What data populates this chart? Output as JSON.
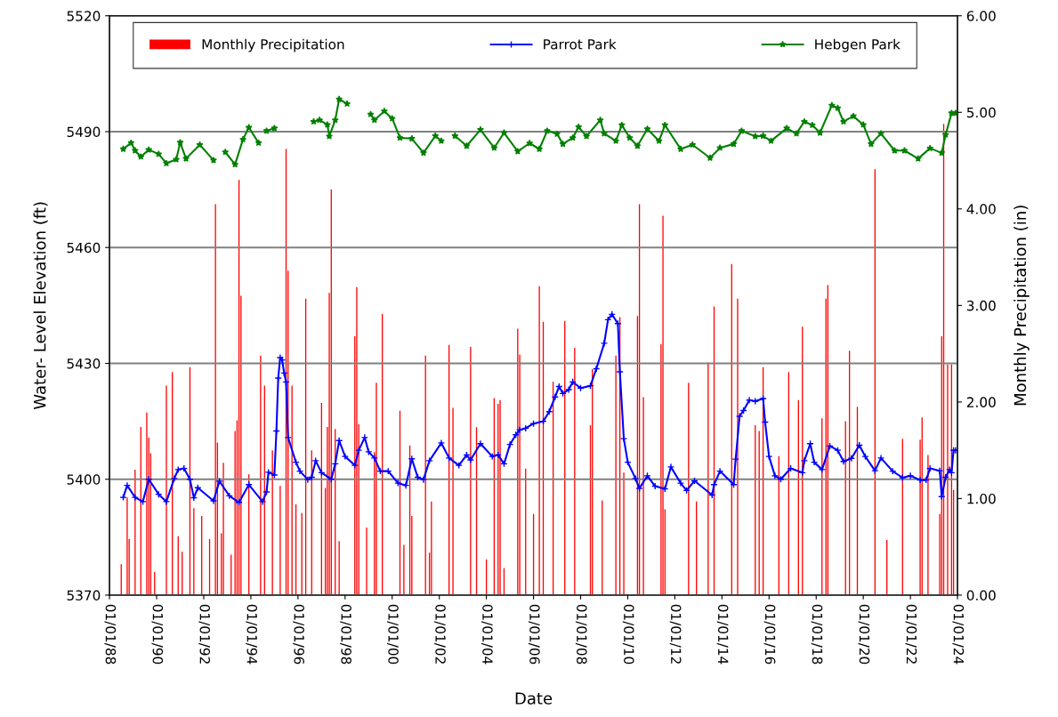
{
  "chart_data": {
    "type": "line",
    "xlabel": "Date",
    "ylabel": "Water- Level Elevation (ft)",
    "y2label": "Monthly Precipitation (in)",
    "xlim": [
      "1988-01-01",
      "2024-01-01"
    ],
    "xticks": [
      {
        "value": "1988-01-01",
        "label": "01/01/88"
      },
      {
        "value": "1990-01-01",
        "label": "01/01/90"
      },
      {
        "value": "1992-01-01",
        "label": "01/01/92"
      },
      {
        "value": "1994-01-01",
        "label": "01/01/94"
      },
      {
        "value": "1996-01-01",
        "label": "01/01/96"
      },
      {
        "value": "1998-01-01",
        "label": "01/01/98"
      },
      {
        "value": "2000-01-01",
        "label": "01/01/00"
      },
      {
        "value": "2002-01-01",
        "label": "01/01/02"
      },
      {
        "value": "2004-01-01",
        "label": "01/01/04"
      },
      {
        "value": "2006-01-01",
        "label": "01/01/06"
      },
      {
        "value": "2008-01-01",
        "label": "01/01/08"
      },
      {
        "value": "2010-01-01",
        "label": "01/01/10"
      },
      {
        "value": "2012-01-01",
        "label": "01/01/12"
      },
      {
        "value": "2014-01-01",
        "label": "01/01/14"
      },
      {
        "value": "2016-01-01",
        "label": "01/01/16"
      },
      {
        "value": "2018-01-01",
        "label": "01/01/18"
      },
      {
        "value": "2020-01-01",
        "label": "01/01/20"
      },
      {
        "value": "2022-01-01",
        "label": "01/01/22"
      },
      {
        "value": "2024-01-01",
        "label": "01/01/24"
      }
    ],
    "ylim": [
      5370,
      5520
    ],
    "yticks": [
      5370,
      5400,
      5430,
      5460,
      5490,
      5520
    ],
    "y2lim": [
      0,
      6
    ],
    "y2ticks": [
      {
        "value": 0,
        "label": "0.00"
      },
      {
        "value": 1,
        "label": "1.00"
      },
      {
        "value": 2,
        "label": "2.00"
      },
      {
        "value": 3,
        "label": "3.00"
      },
      {
        "value": 4,
        "label": "4.00"
      },
      {
        "value": 5,
        "label": "5.00"
      },
      {
        "value": 6,
        "label": "6.00"
      }
    ],
    "grid": "y",
    "legend": "top",
    "series": [
      {
        "name": "Monthly Precipitation",
        "type": "bar",
        "axis": "y2",
        "color": "#ff0000",
        "x": [
          "1988-07",
          "1988-10",
          "1988-11",
          "1989-02",
          "1989-05",
          "1989-08",
          "1989-09",
          "1989-10",
          "1989-12",
          "1990-06",
          "1990-09",
          "1990-12",
          "1991-02",
          "1991-06",
          "1991-08",
          "1991-12",
          "1992-04",
          "1992-07",
          "1992-08",
          "1992-10",
          "1992-11",
          "1993-03",
          "1993-05",
          "1993-06",
          "1993-07",
          "1993-08",
          "1993-12",
          "1994-06",
          "1994-08",
          "1994-12",
          "1995-04",
          "1995-07",
          "1995-08",
          "1995-10",
          "1995-12",
          "1996-03",
          "1996-05",
          "1996-08",
          "1997-01",
          "1997-03",
          "1997-04",
          "1997-05",
          "1997-06",
          "1997-08",
          "1997-10",
          "1998-06",
          "1998-07",
          "1998-08",
          "1998-12",
          "1999-04",
          "1999-05",
          "1999-08",
          "2000-05",
          "2000-07",
          "2000-10",
          "2000-11",
          "2001-06",
          "2001-08",
          "2001-09",
          "2002-06",
          "2002-08",
          "2003-05",
          "2003-08",
          "2004-01",
          "2004-05",
          "2004-07",
          "2004-08",
          "2004-10",
          "2005-05",
          "2005-06",
          "2005-09",
          "2006-01",
          "2006-04",
          "2006-06",
          "2006-11",
          "2007-05",
          "2007-10",
          "2008-06",
          "2008-07",
          "2008-12",
          "2009-07",
          "2009-09",
          "2009-11",
          "2010-06",
          "2010-07",
          "2010-09",
          "2011-06",
          "2011-07",
          "2011-08",
          "2012-08",
          "2012-12",
          "2013-06",
          "2013-09",
          "2014-06",
          "2014-09",
          "2015-06",
          "2015-08",
          "2015-10",
          "2016-06",
          "2016-11",
          "2017-04",
          "2017-06",
          "2018-04",
          "2018-06",
          "2018-07",
          "2019-04",
          "2019-06",
          "2019-10",
          "2020-07",
          "2021-01",
          "2021-09",
          "2022-06",
          "2022-07",
          "2022-10",
          "2023-04",
          "2023-05",
          "2023-06",
          "2023-08",
          "2023-10",
          "2023-11"
        ],
        "values": [
          0.32,
          1.01,
          0.58,
          1.3,
          1.74,
          1.89,
          1.63,
          1.47,
          0.24,
          2.17,
          2.31,
          0.61,
          0.45,
          2.36,
          0.9,
          0.82,
          0.58,
          4.05,
          1.58,
          0.64,
          1.37,
          0.42,
          1.7,
          1.81,
          4.3,
          3.1,
          1.25,
          2.48,
          2.17,
          1.5,
          1.13,
          4.62,
          3.36,
          2.17,
          0.94,
          0.85,
          3.07,
          1.5,
          1.99,
          1.11,
          1.74,
          3.13,
          4.2,
          1.72,
          0.56,
          2.68,
          3.19,
          1.77,
          0.7,
          1.48,
          2.2,
          2.91,
          1.91,
          0.52,
          1.55,
          0.82,
          2.48,
          0.44,
          0.97,
          2.59,
          1.94,
          2.57,
          1.74,
          0.37,
          2.04,
          1.98,
          2.02,
          0.28,
          2.76,
          2.49,
          1.31,
          0.84,
          3.2,
          2.83,
          2.21,
          2.84,
          2.56,
          1.76,
          2.34,
          0.98,
          2.48,
          2.88,
          1.27,
          2.89,
          4.05,
          2.05,
          2.6,
          3.93,
          0.89,
          2.2,
          0.97,
          2.41,
          2.99,
          3.43,
          3.07,
          1.76,
          1.7,
          2.36,
          1.44,
          2.31,
          2.02,
          2.78,
          1.83,
          3.07,
          3.21,
          1.8,
          2.53,
          1.95,
          4.41,
          0.57,
          1.62,
          1.61,
          1.84,
          1.45,
          0.84,
          2.68,
          4.88,
          2.39,
          2.39,
          1.09
        ]
      },
      {
        "name": "Parrot Park",
        "color": "#0000ff",
        "marker": "cross",
        "x": [
          "1988-08",
          "1988-10",
          "1989-02",
          "1989-06",
          "1989-09",
          "1990-02",
          "1990-06",
          "1990-10",
          "1990-12",
          "1991-03",
          "1991-06",
          "1991-08",
          "1991-10",
          "1992-06",
          "1992-09",
          "1993-02",
          "1993-07",
          "1993-12",
          "1994-07",
          "1994-09",
          "1994-10",
          "1995-01",
          "1995-02",
          "1995-03",
          "1995-04",
          "1995-05",
          "1995-06",
          "1995-07",
          "1995-08",
          "1995-12",
          "1996-02",
          "1996-06",
          "1996-08",
          "1996-10",
          "1997-01",
          "1997-06",
          "1997-08",
          "1997-10",
          "1998-01",
          "1998-06",
          "1998-08",
          "1998-11",
          "1999-01",
          "1999-04",
          "1999-07",
          "1999-11",
          "2000-04",
          "2000-08",
          "2000-11",
          "2001-02",
          "2001-05",
          "2001-08",
          "2002-02",
          "2002-06",
          "2002-11",
          "2003-03",
          "2003-05",
          "2003-10",
          "2004-04",
          "2004-07",
          "2004-10",
          "2005-01",
          "2005-04",
          "2005-06",
          "2005-09",
          "2006-01",
          "2006-06",
          "2006-09",
          "2006-12",
          "2007-02",
          "2007-04",
          "2007-07",
          "2007-09",
          "2008-01",
          "2008-06",
          "2008-09",
          "2009-01",
          "2009-03",
          "2009-05",
          "2009-08",
          "2009-09",
          "2009-11",
          "2010-01",
          "2010-05",
          "2010-07",
          "2010-11",
          "2011-03",
          "2011-08",
          "2011-11",
          "2012-04",
          "2012-07",
          "2012-11",
          "2013-08",
          "2013-09",
          "2013-12",
          "2014-07",
          "2014-08",
          "2014-10",
          "2014-12",
          "2015-03",
          "2015-06",
          "2015-10",
          "2015-11",
          "2016-01",
          "2016-04",
          "2016-07",
          "2016-12",
          "2017-06",
          "2017-07",
          "2017-10",
          "2017-12",
          "2018-04",
          "2018-08",
          "2018-12",
          "2019-03",
          "2019-07",
          "2019-11",
          "2020-02",
          "2020-07",
          "2020-10",
          "2021-04",
          "2021-09",
          "2022-01",
          "2022-06",
          "2022-09",
          "2022-11",
          "2023-04",
          "2023-05",
          "2023-07",
          "2023-09",
          "2023-10",
          "2023-11",
          "2023-12"
        ],
        "values": [
          5395.3,
          5398.4,
          5395.3,
          5394.2,
          5400,
          5396.1,
          5394.2,
          5400.2,
          5402.5,
          5402.8,
          5400,
          5395.2,
          5397.8,
          5394.4,
          5399.5,
          5395.7,
          5394,
          5398.6,
          5394.2,
          5396.7,
          5401.8,
          5401.1,
          5412.5,
          5426.2,
          5431.5,
          5430.9,
          5427.5,
          5425.2,
          5410.8,
          5404.4,
          5402.1,
          5399.9,
          5400.5,
          5404.8,
          5401.7,
          5400,
          5404,
          5410,
          5405.9,
          5403.6,
          5407.5,
          5410.8,
          5407.1,
          5405.5,
          5402.1,
          5402.1,
          5399,
          5398.4,
          5405.3,
          5400.5,
          5399.9,
          5404.8,
          5409.4,
          5405.5,
          5403.6,
          5406.3,
          5405,
          5409.2,
          5405.9,
          5406.3,
          5404,
          5409,
          5411.5,
          5412.8,
          5413.2,
          5414.4,
          5415,
          5417.5,
          5421.3,
          5424,
          5422.2,
          5423.2,
          5425.2,
          5423.6,
          5424.2,
          5428.6,
          5435.2,
          5441.3,
          5442.7,
          5440.3,
          5427.8,
          5410.5,
          5404.4,
          5400.2,
          5397.6,
          5400.9,
          5398.2,
          5397.5,
          5403.2,
          5399,
          5397.1,
          5399.6,
          5395.9,
          5398.6,
          5402.1,
          5398.6,
          5405.2,
          5416.3,
          5417.8,
          5420.5,
          5420.2,
          5420.9,
          5414.8,
          5405.9,
          5400.9,
          5400,
          5402.8,
          5401.7,
          5404.8,
          5409.2,
          5404.4,
          5402.5,
          5408.6,
          5407.5,
          5404.6,
          5405.4,
          5408.8,
          5405.9,
          5402.2,
          5405.5,
          5402.1,
          5400.4,
          5400.9,
          5399.8,
          5399.8,
          5402.8,
          5402.2,
          5395.5,
          5400.5,
          5402.5,
          5401.7,
          5407.5,
          5407.5
        ]
      },
      {
        "name": "Hebgen Park",
        "color": "#008000",
        "marker": "star",
        "x": [
          "1988-08",
          "1988-12",
          "1989-02",
          "1989-05",
          "1989-09",
          "1990-02",
          "1990-06",
          "1990-11",
          "1991-01",
          "1991-04",
          "1991-11",
          "1992-06",
          "1992-08",
          "1992-12",
          "1993-05",
          "1993-09",
          "1993-12",
          "1994-05",
          "1994-07",
          "1994-09",
          "1995-01",
          "1995-06",
          "1996-09",
          "1996-12",
          "1997-04",
          "1997-05",
          "1997-08",
          "1997-10",
          "1998-02",
          "1998-08",
          "1999-02",
          "1999-04",
          "1999-09",
          "2000-01",
          "2000-05",
          "2000-11",
          "2001-05",
          "2001-11",
          "2002-02",
          "2002-05",
          "2002-09",
          "2003-03",
          "2003-10",
          "2004-05",
          "2004-10",
          "2005-05",
          "2005-11",
          "2006-04",
          "2006-08",
          "2007-01",
          "2007-04",
          "2007-09",
          "2007-12",
          "2008-04",
          "2008-11",
          "2009-01",
          "2009-07",
          "2009-10",
          "2010-02",
          "2010-06",
          "2010-11",
          "2011-05",
          "2011-08",
          "2012-04",
          "2012-10",
          "2013-07",
          "2013-12",
          "2014-07",
          "2014-11",
          "2015-06",
          "2015-10",
          "2016-02",
          "2016-10",
          "2017-03",
          "2017-07",
          "2017-11",
          "2018-03",
          "2018-09",
          "2018-12",
          "2019-03",
          "2019-08",
          "2020-01",
          "2020-05",
          "2020-10",
          "2021-05",
          "2021-10",
          "2022-05",
          "2022-11",
          "2023-05",
          "2023-07",
          "2023-10",
          "2023-12"
        ],
        "values": [
          5485.5,
          5487.1,
          5485.1,
          5483.5,
          5485.3,
          5484.2,
          5481.8,
          5482.8,
          5487.2,
          5483,
          5486.6,
          5482.6,
          null,
          5484.7,
          5481.5,
          5488,
          5491.1,
          5487.1,
          null,
          5490.2,
          5490.9,
          null,
          5492.6,
          5493,
          5491.8,
          5488.8,
          5493,
          5498.4,
          5497.2,
          null,
          5494.5,
          5493,
          5495.3,
          5493.4,
          5488.4,
          5488.2,
          5484.5,
          5488.9,
          5487.6,
          null,
          5488.9,
          5486.3,
          5490.5,
          5485.8,
          5489.7,
          5484.9,
          5487,
          5485.5,
          5490.2,
          5489.4,
          5486.8,
          5488.4,
          5491.2,
          5488.8,
          5493,
          5489.5,
          5487.6,
          5491.7,
          5488.4,
          5486.3,
          5490.7,
          5487.6,
          5491.7,
          5485.5,
          5486.6,
          5483.2,
          5485.8,
          5486.8,
          5490.2,
          5488.8,
          5488.9,
          5487.6,
          5490.9,
          5489.5,
          5492.6,
          5491.7,
          5489.7,
          5496.8,
          5496.1,
          5492.6,
          5494,
          5491.8,
          5486.8,
          5489.5,
          5485.1,
          5485.1,
          5483,
          5485.7,
          5484.5,
          5489.2,
          5494.8,
          5494.8
        ]
      }
    ]
  }
}
